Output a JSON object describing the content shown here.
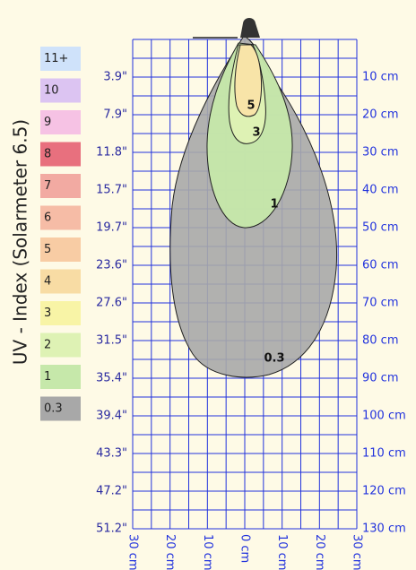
{
  "y_axis_title": "UV - Index (Solarmeter 6.5)",
  "legend": [
    {
      "label": "11+",
      "color": "#cfe2fa"
    },
    {
      "label": "10",
      "color": "#dcc4f2"
    },
    {
      "label": "9",
      "color": "#f6c2e4"
    },
    {
      "label": "8",
      "color": "#e8707e"
    },
    {
      "label": "7",
      "color": "#f2aaa2"
    },
    {
      "label": "6",
      "color": "#f6bca6"
    },
    {
      "label": "5",
      "color": "#f8cca4"
    },
    {
      "label": "4",
      "color": "#f8dca4"
    },
    {
      "label": "3",
      "color": "#f8f4a6"
    },
    {
      "label": "2",
      "color": "#def2b4"
    },
    {
      "label": "1",
      "color": "#c6e8aa"
    },
    {
      "label": "0.3",
      "color": "#a8a8a8"
    }
  ],
  "left_labels": [
    "3.9\"",
    "7.9\"",
    "11.8\"",
    "15.7\"",
    "19.7\"",
    "23.6\"",
    "27.6\"",
    "31.5\"",
    "35.4\"",
    "39.4\"",
    "43.3\"",
    "47.2\"",
    "51.2\""
  ],
  "right_labels": [
    "10 cm",
    "20 cm",
    "30 cm",
    "40 cm",
    "50 cm",
    "60 cm",
    "70 cm",
    "80 cm",
    "90 cm",
    "100 cm",
    "110 cm",
    "120 cm",
    "130 cm"
  ],
  "bottom_labels": [
    "30 cm",
    "20 cm",
    "10 cm",
    "0 cm",
    "10 cm",
    "20 cm",
    "30 cm"
  ],
  "contour_labels": [
    "5",
    "3",
    "1",
    "0.3"
  ]
}
